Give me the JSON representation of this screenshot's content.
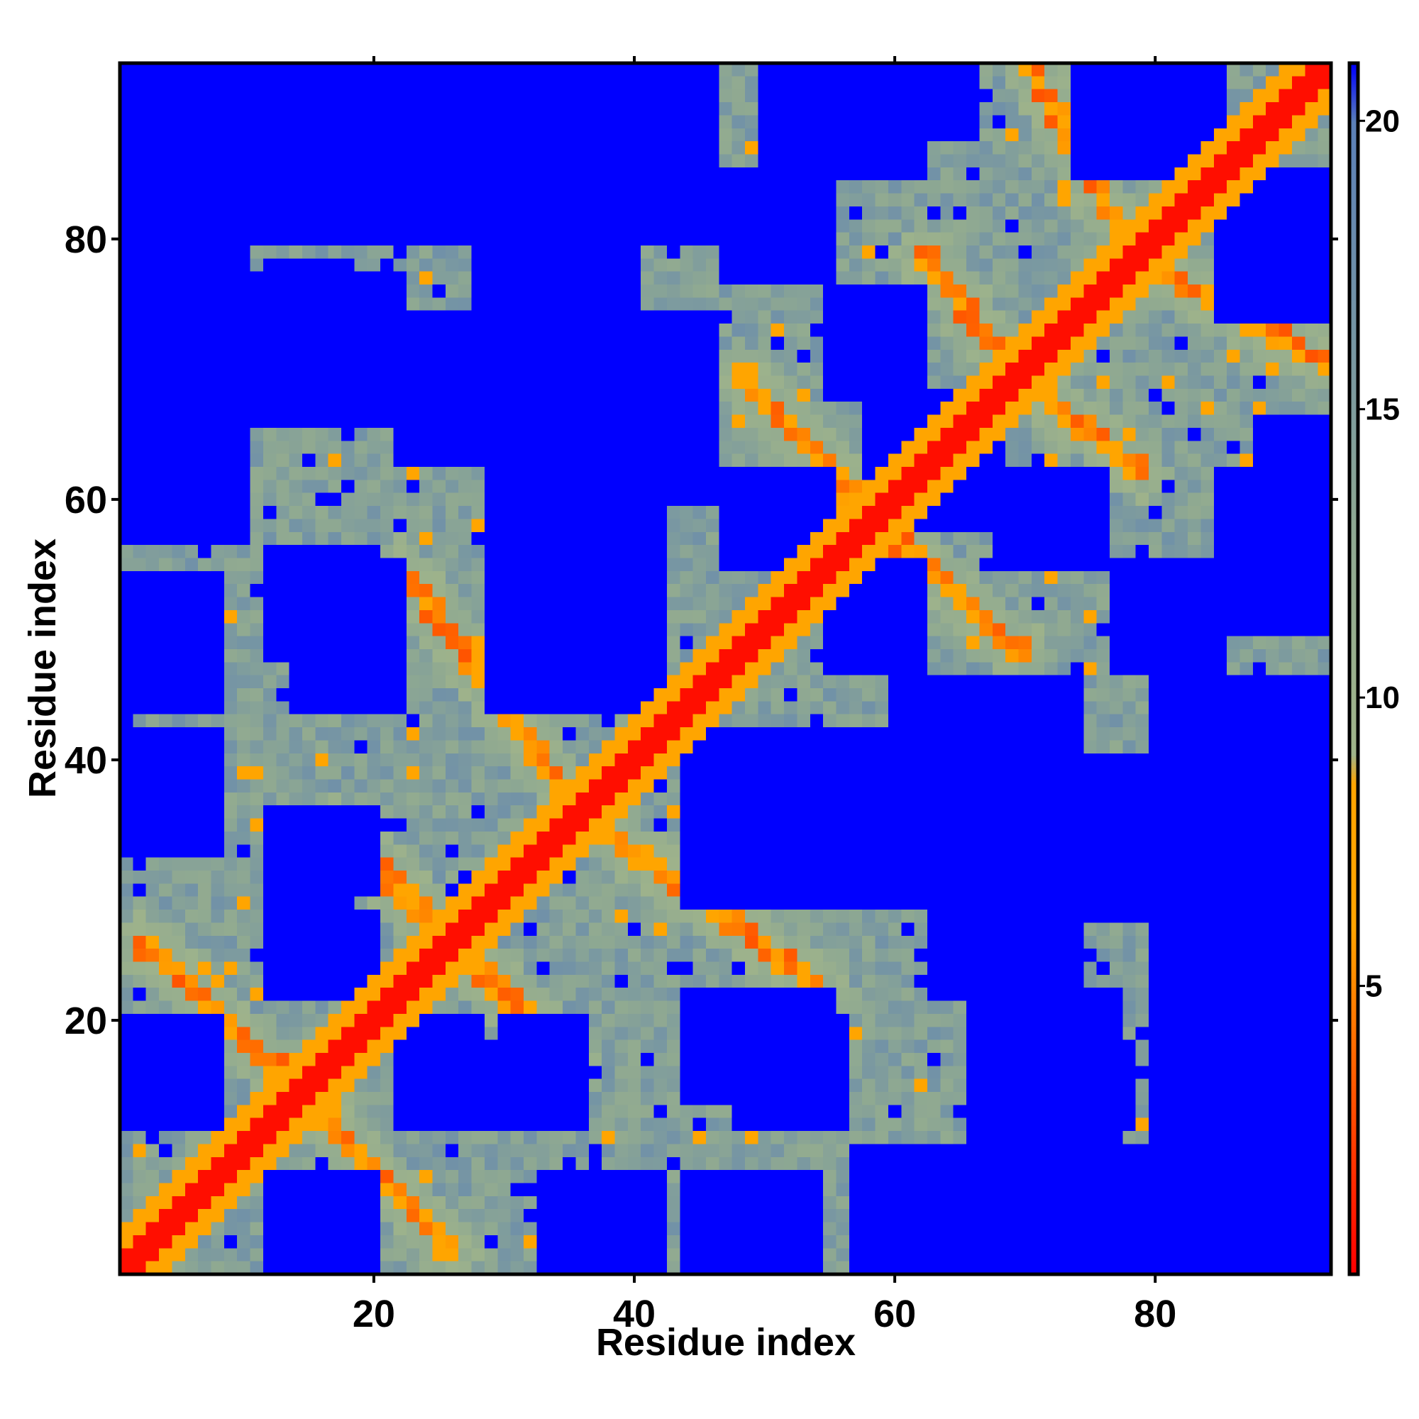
{
  "chart_data": {
    "type": "heatmap",
    "title": "",
    "xlabel": "Residue index",
    "ylabel": "Residue index",
    "n_residues": 93,
    "xlim": [
      1,
      93
    ],
    "ylim": [
      1,
      93
    ],
    "x_ticks": [
      20,
      40,
      60,
      80
    ],
    "y_ticks": [
      20,
      40,
      60,
      80
    ],
    "colorbar": {
      "ticks": [
        5,
        10,
        15,
        20
      ],
      "range": [
        0,
        21
      ],
      "cap_value": 20,
      "stops": [
        {
          "value": 0,
          "color": "#ff0000"
        },
        {
          "value": 6,
          "color": "#ffa500"
        },
        {
          "value": 8.5,
          "color": "#ffa500"
        },
        {
          "value": 9,
          "color": "#a0b48a"
        },
        {
          "value": 13,
          "color": "#8ea892"
        },
        {
          "value": 20,
          "color": "#5b80b8"
        },
        {
          "value": 21,
          "color": "#0000ff"
        }
      ]
    },
    "secondary_structure_contacts": [
      {
        "from": [
          2,
          26
        ],
        "to": [
          13,
          16
        ],
        "description": "antiparallel strand pairing near N-terminus"
      },
      {
        "from": [
          17,
          35
        ],
        "to": [
          27,
          25
        ],
        "description": "antiparallel band"
      },
      {
        "from": [
          22,
          55
        ],
        "to": [
          35,
          37
        ],
        "description": "antiparallel band"
      },
      {
        "from": [
          48,
          70
        ],
        "to": [
          57,
          60
        ],
        "description": "antiparallel band"
      },
      {
        "from": [
          62,
          79
        ],
        "to": [
          69,
          70
        ],
        "description": "antiparallel band"
      },
      {
        "from": [
          70,
          94
        ],
        "to": [
          77,
          81
        ],
        "description": "antiparallel band"
      }
    ],
    "far_blocks": [
      [
        2,
        8,
        80,
        94
      ],
      [
        20,
        35,
        82,
        94
      ],
      [
        50,
        62,
        85,
        94
      ],
      [
        77,
        85,
        85,
        94
      ],
      [
        12,
        18,
        70,
        78
      ],
      [
        28,
        40,
        66,
        80
      ],
      [
        55,
        62,
        68,
        76
      ],
      [
        85,
        94,
        74,
        82
      ],
      [
        38,
        46,
        60,
        72
      ],
      [
        60,
        68,
        58,
        65
      ],
      [
        88,
        94,
        56,
        66
      ],
      [
        2,
        8,
        60,
        66
      ],
      [
        12,
        20,
        48,
        56
      ],
      [
        33,
        42,
        46,
        56
      ],
      [
        55,
        62,
        47,
        55
      ],
      [
        77,
        85,
        47,
        55
      ],
      [
        44,
        68,
        29,
        42
      ],
      [
        63,
        74,
        22,
        46
      ],
      [
        80,
        94,
        20,
        46
      ],
      [
        12,
        20,
        30,
        36
      ],
      [
        44,
        55,
        14,
        22
      ],
      [
        66,
        77,
        10,
        22
      ],
      [
        80,
        94,
        10,
        22
      ],
      [
        12,
        20,
        22,
        28
      ],
      [
        2,
        8,
        14,
        20
      ],
      [
        57,
        72,
        1,
        10
      ],
      [
        72,
        94,
        1,
        10
      ],
      [
        25,
        32,
        12,
        18
      ],
      [
        12,
        20,
        1,
        8
      ],
      [
        33,
        42,
        1,
        8
      ],
      [
        44,
        54,
        1,
        8
      ]
    ]
  }
}
